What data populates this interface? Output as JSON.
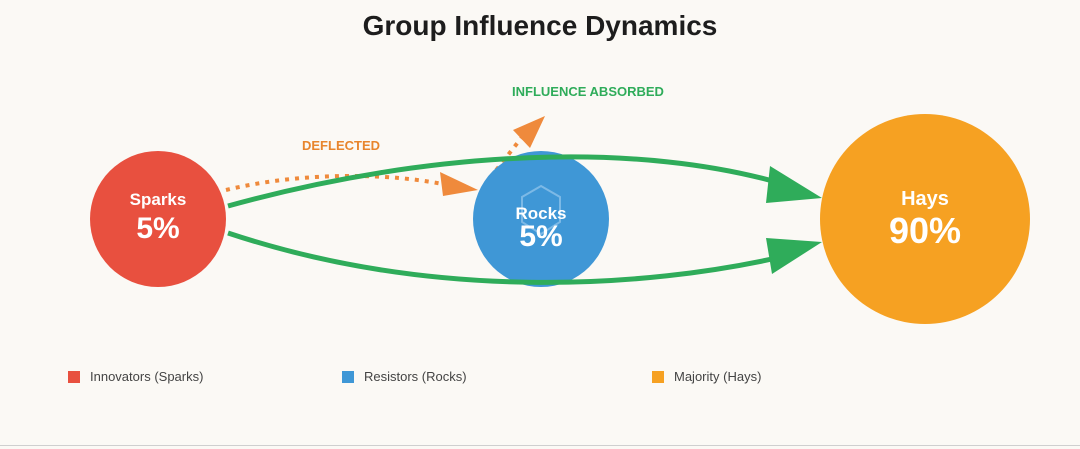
{
  "title": "Group Influence Dynamics",
  "nodes": {
    "sparks": {
      "name": "Sparks",
      "percent": "5%",
      "color": "#e8503f"
    },
    "rocks": {
      "name": "Rocks",
      "percent": "5%",
      "color": "#3f97d6"
    },
    "hays": {
      "name": "Hays",
      "percent": "90%",
      "color": "#f6a122"
    }
  },
  "annotations": {
    "deflected": "DEFLECTED",
    "absorbed": "INFLUENCE ABSORBED"
  },
  "colors": {
    "influence_arrow": "#2fac5a",
    "deflected_arrow": "#ef8a3c",
    "deflected_label": "#e8852d",
    "absorbed_label": "#2fac5a"
  },
  "legend": [
    {
      "label": "Innovators (Sparks)",
      "color": "#e8503f"
    },
    {
      "label": "Resistors (Rocks)",
      "color": "#3f97d6"
    },
    {
      "label": "Majority (Hays)",
      "color": "#f6a122"
    }
  ]
}
